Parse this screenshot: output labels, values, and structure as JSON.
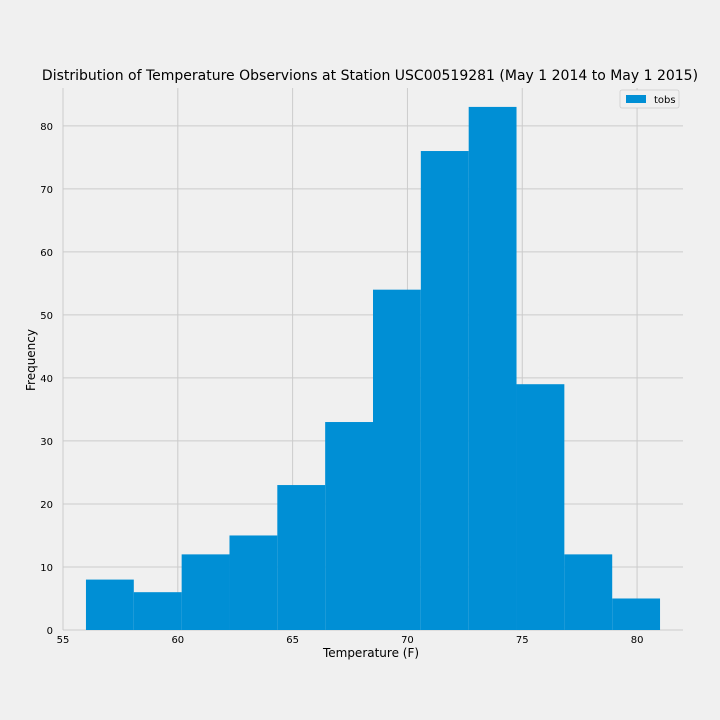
{
  "chart_data": {
    "type": "bar",
    "title": "Distribution of Temperature Observions at Station USC00519281 (May 1 2014 to May 1 2015)",
    "xlabel": "Temperature (F)",
    "ylabel": "Frequency",
    "bin_edges": [
      56.0,
      58.083,
      60.167,
      62.25,
      64.333,
      66.417,
      68.5,
      70.583,
      72.667,
      74.75,
      76.833,
      78.917,
      81.0
    ],
    "values": [
      8,
      6,
      12,
      15,
      23,
      33,
      54,
      76,
      83,
      39,
      12,
      5
    ],
    "xlim": [
      55,
      82
    ],
    "ylim": [
      0,
      86
    ],
    "xticks": [
      55,
      60,
      65,
      70,
      75,
      80
    ],
    "yticks": [
      0,
      10,
      20,
      30,
      40,
      50,
      60,
      70,
      80
    ],
    "grid": true,
    "legend": {
      "entries": [
        "tobs"
      ],
      "placement": "top-right"
    },
    "colors": {
      "bar": "#008fd5",
      "grid": "#cbcbcb",
      "background": "#f0f0f0"
    }
  }
}
